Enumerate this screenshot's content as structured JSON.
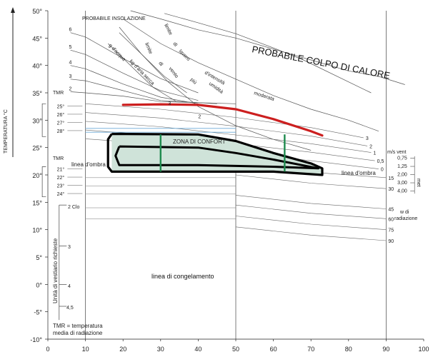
{
  "chart_data": {
    "type": "line",
    "title": "",
    "ylabel": "TEMPERATURA °C",
    "xlabel": "",
    "xlim": [
      0,
      100
    ],
    "ylim": [
      -10,
      50
    ],
    "x_ticks": [
      0,
      10,
      20,
      30,
      40,
      50,
      60,
      70,
      80,
      90,
      100
    ],
    "y_ticks": [
      {
        "v": 50,
        "t": "50°"
      },
      {
        "v": 45,
        "t": "45°"
      },
      {
        "v": 40,
        "t": "40°"
      },
      {
        "v": 35,
        "t": "35°"
      },
      {
        "v": 30,
        "t": "30°"
      },
      {
        "v": 25,
        "t": "25°"
      },
      {
        "v": 20,
        "t": "20°"
      },
      {
        "v": 15,
        "t": "15°"
      },
      {
        "v": 10,
        "t": "10°"
      },
      {
        "v": 5,
        "t": "5°"
      },
      {
        "v": 0,
        "t": "0°"
      },
      {
        "v": -5,
        "t": "-5°"
      },
      {
        "v": -10,
        "t": "-10°"
      }
    ],
    "texts": {
      "insolazione": "PROBABILE INSOLAZIONE",
      "colpo": "PROBABILE COLPO DI CALORE",
      "zona": "ZONA DI CONFORT",
      "ombra_left": "linea d'ombra",
      "ombra_right": "linea d'ombra",
      "congelamento": "linea di congelamento",
      "vestiario": "Unità di vestiario richieste",
      "tmr_def_1": "TMR = temperatura",
      "tmr_def_2": "media di radiazione",
      "tmr_top": "TMR",
      "tmr_bottom": "TMR",
      "mvent": "m/s vent",
      "met": "met",
      "radiazione": "w di",
      "radiazione2": "radiazione",
      "clo": "2 Clo",
      "clo3": "3",
      "clo4": "4",
      "clo45": "4,5",
      "lavoro": [
        "limite",
        "di",
        "lavoro",
        "d'intensità",
        "moderata"
      ],
      "vento": [
        "limite",
        "di",
        "vento",
        "più",
        "umidità"
      ],
      "acqua": [
        "g d'acqua",
        "kg d'aria secca"
      ]
    },
    "tmr_upper": [
      "25°",
      "26°",
      "27°",
      "28°"
    ],
    "tmr_lower": [
      "21°",
      "22°",
      "23°",
      "24°"
    ],
    "insolazione_levels": [
      "6",
      "5",
      "4",
      "3",
      "2"
    ],
    "acqua_levels": [
      "3",
      "2"
    ],
    "vento_right": [
      "3",
      "2",
      "1",
      "0,5",
      "0"
    ],
    "met_values": [
      "0,75",
      "1,25",
      "2,00",
      "3,00",
      "4,00"
    ],
    "radiazione_right": [
      "15",
      "30",
      "45",
      "60",
      "75",
      "90"
    ],
    "red_curve": [
      {
        "x": 20,
        "y": 32.8
      },
      {
        "x": 30,
        "y": 32.9
      },
      {
        "x": 40,
        "y": 32.8
      },
      {
        "x": 50,
        "y": 32.0
      },
      {
        "x": 60,
        "y": 30.2
      },
      {
        "x": 70,
        "y": 28.0
      },
      {
        "x": 73,
        "y": 27.2
      }
    ],
    "comfort_zone": [
      {
        "x": 17,
        "y": 27.5
      },
      {
        "x": 40,
        "y": 27.4
      },
      {
        "x": 50,
        "y": 26.2
      },
      {
        "x": 60,
        "y": 24.0
      },
      {
        "x": 73,
        "y": 21.2
      },
      {
        "x": 73,
        "y": 20
      },
      {
        "x": 60,
        "y": 20.8
      },
      {
        "x": 40,
        "y": 20.6
      },
      {
        "x": 17,
        "y": 20.8
      }
    ],
    "comfort_lines": [
      30,
      63
    ],
    "colors": {
      "red": "#cc1f1f",
      "green": "#1f8a4e",
      "fill": "#cfe3d9",
      "blue": "#6aa9d6",
      "grey": "#555555"
    }
  }
}
